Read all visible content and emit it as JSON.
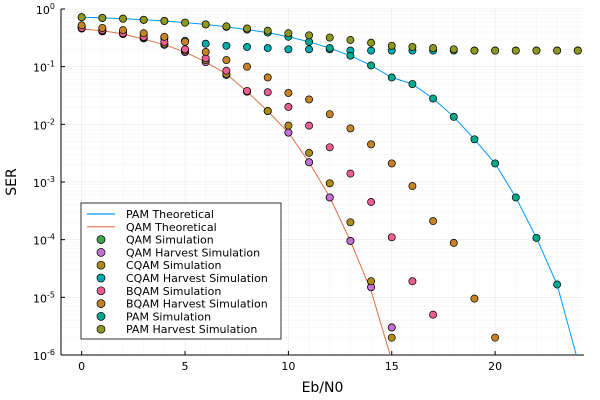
{
  "chart_data": {
    "type": "scatter",
    "xlabel": "Eb/N0",
    "ylabel": "SER",
    "xlim": [
      -1,
      24.3
    ],
    "ylim_exp": [
      -6,
      0
    ],
    "yscale": "log",
    "grid": true,
    "legend_position": "bottom-left",
    "x_ticks": [
      {
        "value": 0,
        "label": "0"
      },
      {
        "value": 5,
        "label": "5"
      },
      {
        "value": 10,
        "label": "10"
      },
      {
        "value": 15,
        "label": "15"
      },
      {
        "value": 20,
        "label": "20"
      }
    ],
    "y_ticks": [
      {
        "exp": -6,
        "base": "10",
        "sup": "-6"
      },
      {
        "exp": -5,
        "base": "10",
        "sup": "-5"
      },
      {
        "exp": -4,
        "base": "10",
        "sup": "-4"
      },
      {
        "exp": -3,
        "base": "10",
        "sup": "-3"
      },
      {
        "exp": -2,
        "base": "10",
        "sup": "-2"
      },
      {
        "exp": -1,
        "base": "10",
        "sup": "-1"
      },
      {
        "exp": 0,
        "base": "10",
        "sup": "0"
      }
    ],
    "lines": [
      {
        "name": "PAM Theoretical",
        "color": "#009AFA",
        "x": [
          0,
          1,
          2,
          3,
          4,
          5,
          6,
          7,
          8,
          9,
          10,
          11,
          12,
          13,
          14,
          15,
          16,
          17,
          18,
          19,
          20,
          21,
          22,
          23,
          24
        ],
        "y": [
          0.72,
          0.7,
          0.68,
          0.65,
          0.62,
          0.58,
          0.54,
          0.49,
          0.44,
          0.39,
          0.33,
          0.27,
          0.21,
          0.155,
          0.105,
          0.065,
          0.05,
          0.028,
          0.0135,
          0.0055,
          0.0021,
          0.00054,
          0.000107,
          1.67e-05,
          8e-07
        ]
      },
      {
        "name": "QAM Theoretical",
        "color": "#E26F46",
        "x": [
          0,
          1,
          2,
          3,
          4,
          5,
          6,
          7,
          8,
          9,
          10,
          11,
          12,
          13,
          14,
          15
        ],
        "y": [
          0.45,
          0.42,
          0.37,
          0.3,
          0.24,
          0.18,
          0.12,
          0.075,
          0.037,
          0.017,
          0.0072,
          0.0022,
          0.00055,
          9.5e-05,
          1.3e-05,
          8e-07
        ]
      }
    ],
    "series": [
      {
        "name": "QAM Simulation",
        "color": "#3DA44D",
        "x": [
          0,
          1,
          2,
          3,
          4,
          5,
          6,
          7,
          8,
          9,
          10,
          11,
          12,
          13,
          14,
          15
        ],
        "y": [
          0.46,
          0.41,
          0.37,
          0.31,
          0.24,
          0.18,
          0.12,
          0.072,
          0.037,
          0.017,
          0.0072,
          0.0022,
          0.00054,
          9.5e-05,
          1.5e-05,
          3e-06
        ]
      },
      {
        "name": "QAM Harvest Simulation",
        "color": "#C271D2",
        "x": [
          0,
          1,
          2,
          3,
          4,
          5,
          6,
          7,
          8,
          9,
          10,
          11,
          12,
          13,
          14,
          15
        ],
        "y": [
          0.46,
          0.41,
          0.37,
          0.31,
          0.24,
          0.18,
          0.12,
          0.072,
          0.037,
          0.017,
          0.0072,
          0.0022,
          0.00054,
          9.5e-05,
          1.5e-05,
          3e-06
        ]
      },
      {
        "name": "CQAM Simulation",
        "color": "#AC8D18",
        "x": [
          0,
          1,
          2,
          3,
          4,
          5,
          6,
          7,
          8,
          9,
          10,
          11,
          12,
          13,
          14,
          15
        ],
        "y": [
          0.47,
          0.42,
          0.38,
          0.32,
          0.25,
          0.19,
          0.13,
          0.075,
          0.037,
          0.017,
          0.0095,
          0.0032,
          0.00095,
          0.0002,
          1.9e-05,
          2e-06
        ]
      },
      {
        "name": "CQAM Harvest Simulation",
        "color": "#00A9AD",
        "x": [
          0,
          1,
          2,
          3,
          4,
          5,
          6,
          7,
          8,
          9,
          10,
          11,
          12,
          13,
          14,
          15,
          16,
          17,
          18,
          19,
          20,
          21,
          22,
          23,
          24
        ],
        "y": [
          0.5,
          0.45,
          0.4,
          0.35,
          0.31,
          0.28,
          0.25,
          0.23,
          0.22,
          0.21,
          0.2,
          0.2,
          0.2,
          0.19,
          0.19,
          0.19,
          0.19,
          0.19,
          0.19,
          0.19,
          0.19,
          0.19,
          0.19,
          0.19,
          0.19
        ]
      },
      {
        "name": "BQAM Simulation",
        "color": "#ED5D92",
        "x": [
          0,
          1,
          2,
          3,
          4,
          5,
          6,
          7,
          8,
          9,
          10,
          11,
          12,
          13,
          14,
          15,
          16,
          17
        ],
        "y": [
          0.47,
          0.43,
          0.38,
          0.33,
          0.27,
          0.2,
          0.14,
          0.085,
          0.038,
          0.036,
          0.02,
          0.0095,
          0.004,
          0.0014,
          0.00045,
          0.00011,
          1.9e-05,
          5e-06
        ]
      },
      {
        "name": "BQAM Harvest Simulation",
        "color": "#C68225",
        "x": [
          0,
          1,
          2,
          3,
          4,
          5,
          6,
          7,
          8,
          9,
          10,
          11,
          12,
          13,
          14,
          15,
          16,
          17,
          18,
          19,
          20
        ],
        "y": [
          0.52,
          0.47,
          0.43,
          0.38,
          0.33,
          0.27,
          0.18,
          0.13,
          0.1,
          0.065,
          0.035,
          0.027,
          0.015,
          0.0085,
          0.0045,
          0.0021,
          0.00085,
          0.00021,
          8.8e-05,
          9.5e-06,
          2e-06
        ]
      },
      {
        "name": "PAM Simulation",
        "color": "#00A98D",
        "x": [
          0,
          1,
          2,
          3,
          4,
          5,
          6,
          7,
          8,
          9,
          10,
          11,
          12,
          13,
          14,
          15,
          16,
          17,
          18,
          19,
          20,
          21,
          22,
          23,
          24
        ],
        "y": [
          0.72,
          0.7,
          0.68,
          0.65,
          0.62,
          0.58,
          0.54,
          0.49,
          0.44,
          0.39,
          0.33,
          0.27,
          0.21,
          0.155,
          0.105,
          0.065,
          0.05,
          0.028,
          0.0135,
          0.0055,
          0.0021,
          0.00054,
          0.000107,
          1.67e-05,
          0.19
        ]
      },
      {
        "name": "PAM Harvest Simulation",
        "color": "#8E971E",
        "x": [
          0,
          1,
          2,
          3,
          4,
          5,
          6,
          7,
          8,
          9,
          10,
          11,
          12,
          13,
          14,
          15,
          16,
          17,
          18,
          19,
          20,
          21,
          22,
          23,
          24
        ],
        "y": [
          0.72,
          0.7,
          0.68,
          0.65,
          0.62,
          0.58,
          0.54,
          0.5,
          0.46,
          0.42,
          0.38,
          0.35,
          0.32,
          0.29,
          0.26,
          0.23,
          0.22,
          0.21,
          0.2,
          0.19,
          0.19,
          0.19,
          0.19,
          0.19,
          0.19
        ]
      }
    ]
  }
}
